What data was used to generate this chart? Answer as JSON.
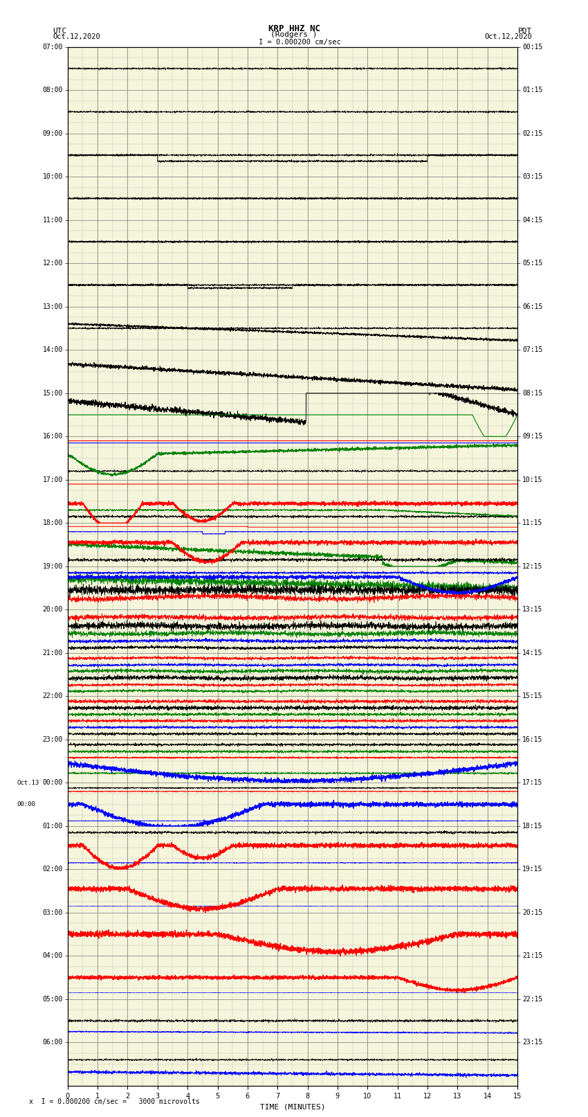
{
  "title_line1": "KRP HHZ NC",
  "title_line2": "(Rodgers )",
  "scale_label": "I = 0.000200 cm/sec",
  "left_label_top": "UTC",
  "left_label_date": "Oct.12,2020",
  "right_label_top": "PDT",
  "right_label_date": "Oct.12,2020",
  "oct13_label": "Oct.13",
  "left_time_labels_utc": [
    "07:00",
    "08:00",
    "09:00",
    "10:00",
    "11:00",
    "12:00",
    "13:00",
    "14:00",
    "15:00",
    "16:00",
    "17:00",
    "18:00",
    "19:00",
    "20:00",
    "21:00",
    "22:00",
    "23:00",
    "00:00",
    "01:00",
    "02:00",
    "03:00",
    "04:00",
    "05:00",
    "06:00"
  ],
  "right_time_labels_pdt": [
    "00:15",
    "01:15",
    "02:15",
    "03:15",
    "04:15",
    "05:15",
    "06:15",
    "07:15",
    "08:15",
    "09:15",
    "10:15",
    "11:15",
    "12:15",
    "13:15",
    "14:15",
    "15:15",
    "16:15",
    "17:15",
    "18:15",
    "19:15",
    "20:15",
    "21:15",
    "22:15",
    "23:15"
  ],
  "xlabel": "TIME (MINUTES)",
  "footer": "x  I = 0.000200 cm/sec =   3000 microvolts",
  "xlim": [
    0,
    15
  ],
  "num_rows": 24,
  "bg_color": "#f5f5dc",
  "grid_color_major": "#777777",
  "grid_color_minor": "#aaaaaa",
  "lc_black": "#000000",
  "lc_red": "#ff0000",
  "lc_green": "#008000",
  "lc_blue": "#0000ff"
}
